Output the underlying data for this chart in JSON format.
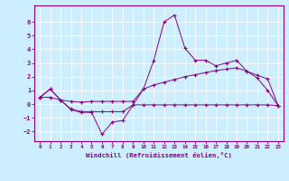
{
  "xlabel": "Windchill (Refroidissement éolien,°C)",
  "background_color": "#cceeff",
  "grid_color": "#ffffff",
  "line_color": "#880088",
  "xlim": [
    -0.5,
    23.5
  ],
  "ylim": [
    -2.7,
    7.2
  ],
  "xticks": [
    0,
    1,
    2,
    3,
    4,
    5,
    6,
    7,
    8,
    9,
    10,
    11,
    12,
    13,
    14,
    15,
    16,
    17,
    18,
    19,
    20,
    21,
    22,
    23
  ],
  "yticks": [
    -2,
    -1,
    0,
    1,
    2,
    3,
    4,
    5,
    6
  ],
  "series1": [
    0.5,
    1.1,
    0.3,
    -0.4,
    -0.6,
    -0.6,
    -2.2,
    -1.3,
    -1.2,
    -0.05,
    1.1,
    3.2,
    6.0,
    6.5,
    4.1,
    3.2,
    3.2,
    2.8,
    3.0,
    3.2,
    2.4,
    1.9,
    1.0,
    -0.1
  ],
  "series2": [
    0.5,
    1.1,
    0.3,
    0.2,
    0.15,
    0.2,
    0.2,
    0.2,
    0.2,
    0.2,
    1.1,
    1.4,
    1.6,
    1.8,
    2.0,
    2.15,
    2.3,
    2.45,
    2.55,
    2.65,
    2.4,
    2.1,
    1.85,
    -0.1
  ],
  "series3": [
    0.5,
    0.5,
    0.3,
    -0.35,
    -0.55,
    -0.55,
    -0.55,
    -0.55,
    -0.55,
    -0.05,
    -0.05,
    -0.05,
    -0.05,
    -0.05,
    -0.05,
    -0.05,
    -0.05,
    -0.05,
    -0.05,
    -0.05,
    -0.05,
    -0.05,
    -0.05,
    -0.1
  ]
}
